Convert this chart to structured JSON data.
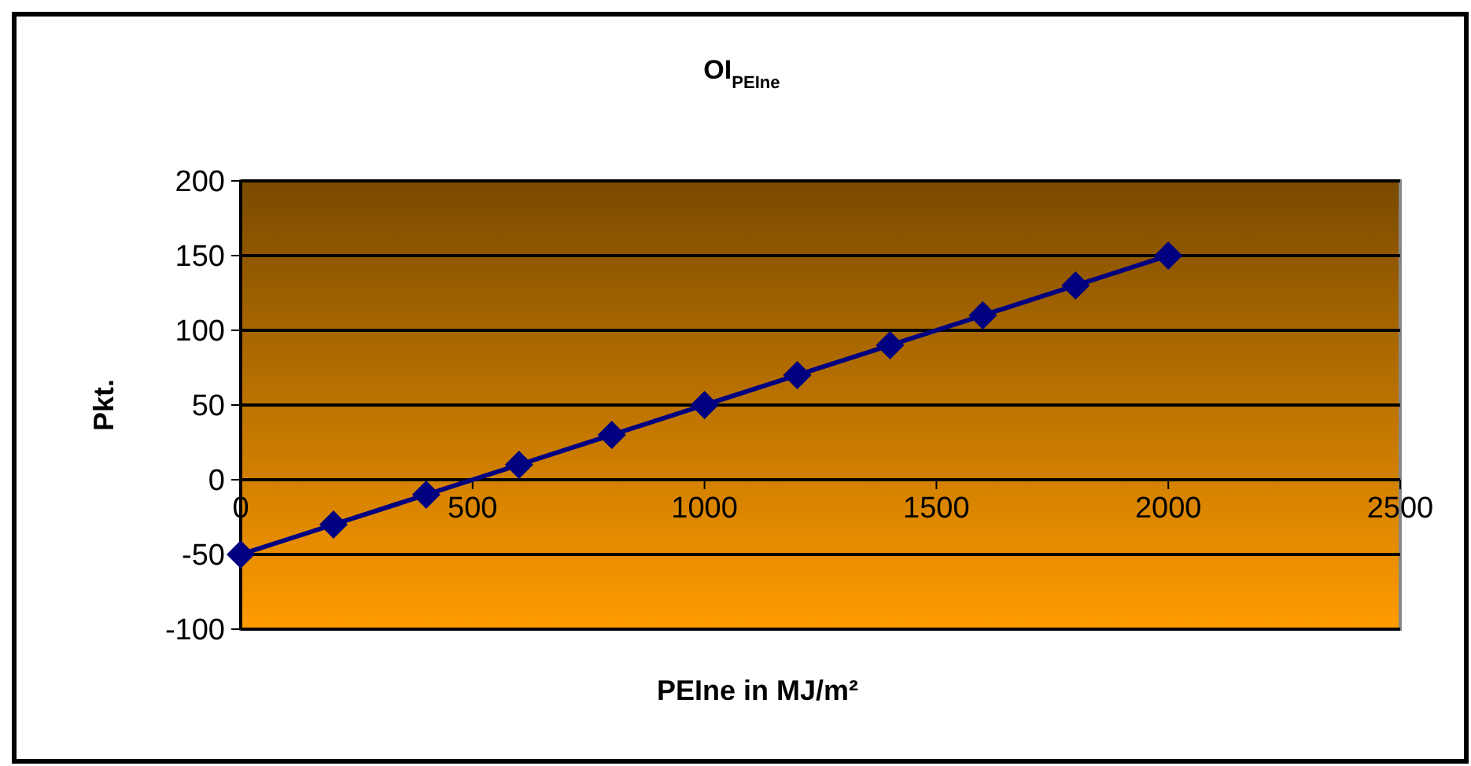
{
  "chart_data": {
    "type": "line",
    "title": "OI$_{PEIne}$",
    "xlabel": "PEIne in MJ/m²",
    "ylabel": "Pkt.",
    "x": [
      0,
      200,
      400,
      600,
      800,
      1000,
      1200,
      1400,
      1600,
      1800,
      2000
    ],
    "series": [
      {
        "color": "#000080",
        "values": [
          -50,
          -30,
          -10,
          10,
          30,
          50,
          70,
          90,
          110,
          130,
          150
        ]
      }
    ],
    "xlim": [
      0,
      2500
    ],
    "xticks": [
      0,
      500,
      1000,
      1500,
      2000,
      2500
    ],
    "ylim": [
      -100,
      200
    ],
    "yticks": [
      -100,
      -50,
      0,
      50,
      100,
      150,
      200
    ],
    "grid": "y",
    "marker": "diamond",
    "line_style": "solid"
  }
}
